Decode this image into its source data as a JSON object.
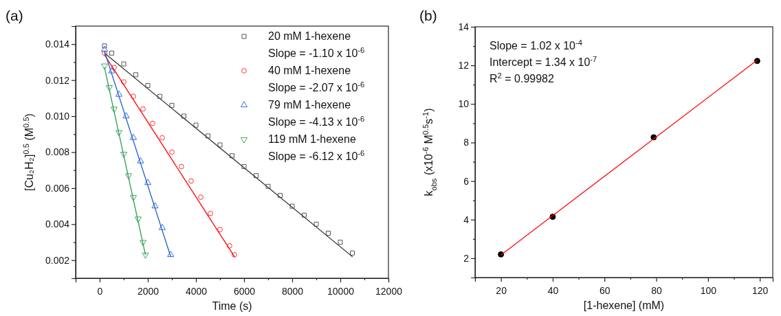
{
  "chart_data": [
    {
      "type": "scatter",
      "title": "(a)",
      "xlabel": "Time (s)",
      "ylabel": "[Cu₂H₂]$^{0.5}$ (M$^{0.5}$)",
      "xlim": [
        -1000,
        12000
      ],
      "ylim": [
        0.001,
        0.015
      ],
      "xticks": [
        {
          "value": -1000,
          "label": null
        },
        0,
        {
          "value": 1000,
          "label": null
        },
        2000,
        {
          "value": 3000,
          "label": null
        },
        4000,
        {
          "value": 5000,
          "label": null
        },
        6000,
        {
          "value": 7000,
          "label": null
        },
        8000,
        {
          "value": 9000,
          "label": null
        },
        10000,
        {
          "value": 11000,
          "label": null
        },
        12000
      ],
      "yticks": [
        {
          "value": 0.001,
          "label": null
        },
        {
          "value": 0.002,
          "label": "0.002"
        },
        {
          "value": 0.003,
          "label": null
        },
        {
          "value": 0.004,
          "label": "0.004"
        },
        {
          "value": 0.005,
          "label": null
        },
        {
          "value": 0.006,
          "label": "0.006"
        },
        {
          "value": 0.007,
          "label": null
        },
        {
          "value": 0.008,
          "label": "0.008"
        },
        {
          "value": 0.009,
          "label": null
        },
        {
          "value": 0.01,
          "label": "0.010"
        },
        {
          "value": 0.011,
          "label": null
        },
        {
          "value": 0.012,
          "label": "0.012"
        },
        {
          "value": 0.013,
          "label": null
        },
        {
          "value": 0.014,
          "label": "0.014"
        },
        {
          "value": 0.015,
          "label": null
        }
      ],
      "legend": "top right",
      "annotations": [
        "Slope = -1.10 x 10$^{-6}$",
        "Slope = -2.07 x 10$^{-6}$",
        "Slope = -4.13 x 10$^{-6}$",
        "Slope = -6.12 x 10$^{-6}$"
      ],
      "series": [
        {
          "name": "20 mM 1-hexene",
          "color": "#555555",
          "marker": "square",
          "x": [
            200,
            500,
            1000,
            1500,
            2000,
            2500,
            3000,
            3500,
            4000,
            4500,
            5000,
            5500,
            6000,
            6500,
            7000,
            7500,
            8000,
            8500,
            9000,
            9500,
            10000,
            10500
          ],
          "values": [
            0.0139,
            0.0135,
            0.0129,
            0.0123,
            0.0117,
            0.0111,
            0.0106,
            0.01,
            0.0095,
            0.0089,
            0.0084,
            0.0078,
            0.0072,
            0.0067,
            0.0061,
            0.0056,
            0.005,
            0.0045,
            0.004,
            0.0035,
            0.003,
            0.0024
          ]
        },
        {
          "name": "40 mM 1-hexene",
          "color": "#ff3333",
          "marker": "circle",
          "x": [
            200,
            600,
            1000,
            1400,
            1800,
            2200,
            2600,
            3000,
            3400,
            3800,
            4200,
            4600,
            5000,
            5400,
            5600
          ],
          "values": [
            0.0135,
            0.0127,
            0.0119,
            0.0111,
            0.0104,
            0.0096,
            0.0088,
            0.008,
            0.0072,
            0.0064,
            0.0055,
            0.0046,
            0.0037,
            0.0028,
            0.0023
          ]
        },
        {
          "name": "79 mM 1-hexene",
          "color": "#2b6fe0",
          "marker": "triangle",
          "x": [
            200,
            500,
            800,
            1100,
            1400,
            1700,
            2000,
            2300,
            2600,
            2950
          ],
          "values": [
            0.0137,
            0.0125,
            0.0112,
            0.01,
            0.0088,
            0.0075,
            0.0063,
            0.005,
            0.0038,
            0.0023
          ]
        },
        {
          "name": "119 mM 1-hexene",
          "color": "#3aaa5e",
          "marker": "triangle-down",
          "x": [
            200,
            400,
            600,
            800,
            1000,
            1200,
            1400,
            1600,
            1800,
            1900
          ],
          "values": [
            0.0128,
            0.0116,
            0.0104,
            0.0091,
            0.0079,
            0.0067,
            0.0055,
            0.0043,
            0.003,
            0.0023
          ]
        },
        {
          "type": "line",
          "color": "#333333",
          "x": [
            200,
            10500
          ],
          "values": [
            0.0135,
            0.0022
          ]
        },
        {
          "type": "line",
          "color": "#ff0000",
          "x": [
            200,
            5600
          ],
          "values": [
            0.0134,
            0.0022
          ]
        },
        {
          "type": "line",
          "color": "#1f5fd0",
          "x": [
            200,
            2950
          ],
          "values": [
            0.0136,
            0.0022
          ]
        },
        {
          "type": "line",
          "color": "#2e9a50",
          "x": [
            200,
            1900
          ],
          "values": [
            0.0127,
            0.0023
          ]
        }
      ]
    },
    {
      "type": "scatter",
      "title": "(b)",
      "xlabel": "[1-hexene] (mM)",
      "ylabel": "k$_{obs}$ (x10$^{-6}$ M$^{0.5}$s$^{-1}$)",
      "xlim": [
        10,
        125
      ],
      "ylim": [
        1,
        14
      ],
      "xticks": [
        {
          "value": 10,
          "label": null
        },
        20,
        {
          "value": 30,
          "label": null
        },
        40,
        {
          "value": 50,
          "label": null
        },
        60,
        {
          "value": 70,
          "label": null
        },
        80,
        {
          "value": 90,
          "label": null
        },
        100,
        {
          "value": 110,
          "label": null
        },
        120
      ],
      "yticks": [
        {
          "value": 1,
          "label": null
        },
        2,
        {
          "value": 3,
          "label": null
        },
        4,
        {
          "value": 5,
          "label": null
        },
        6,
        {
          "value": 7,
          "label": null
        },
        8,
        {
          "value": 9,
          "label": null
        },
        10,
        {
          "value": 11,
          "label": null
        },
        12,
        {
          "value": 13,
          "label": null
        },
        14
      ],
      "annotations": [
        "Slope = 1.02 x 10$^{-4}$",
        "Intercept = 1.34 x 10$^{-7}$",
        "R$^{2}$ = 0.99982"
      ],
      "series": [
        {
          "color": "#000000",
          "marker": "circle",
          "x": [
            20,
            40,
            79,
            119
          ],
          "values": [
            2.2,
            4.15,
            8.27,
            12.23
          ]
        },
        {
          "type": "line",
          "color": "#ff0000",
          "x": [
            20,
            119
          ],
          "values": [
            2.17,
            12.27
          ]
        }
      ]
    }
  ]
}
